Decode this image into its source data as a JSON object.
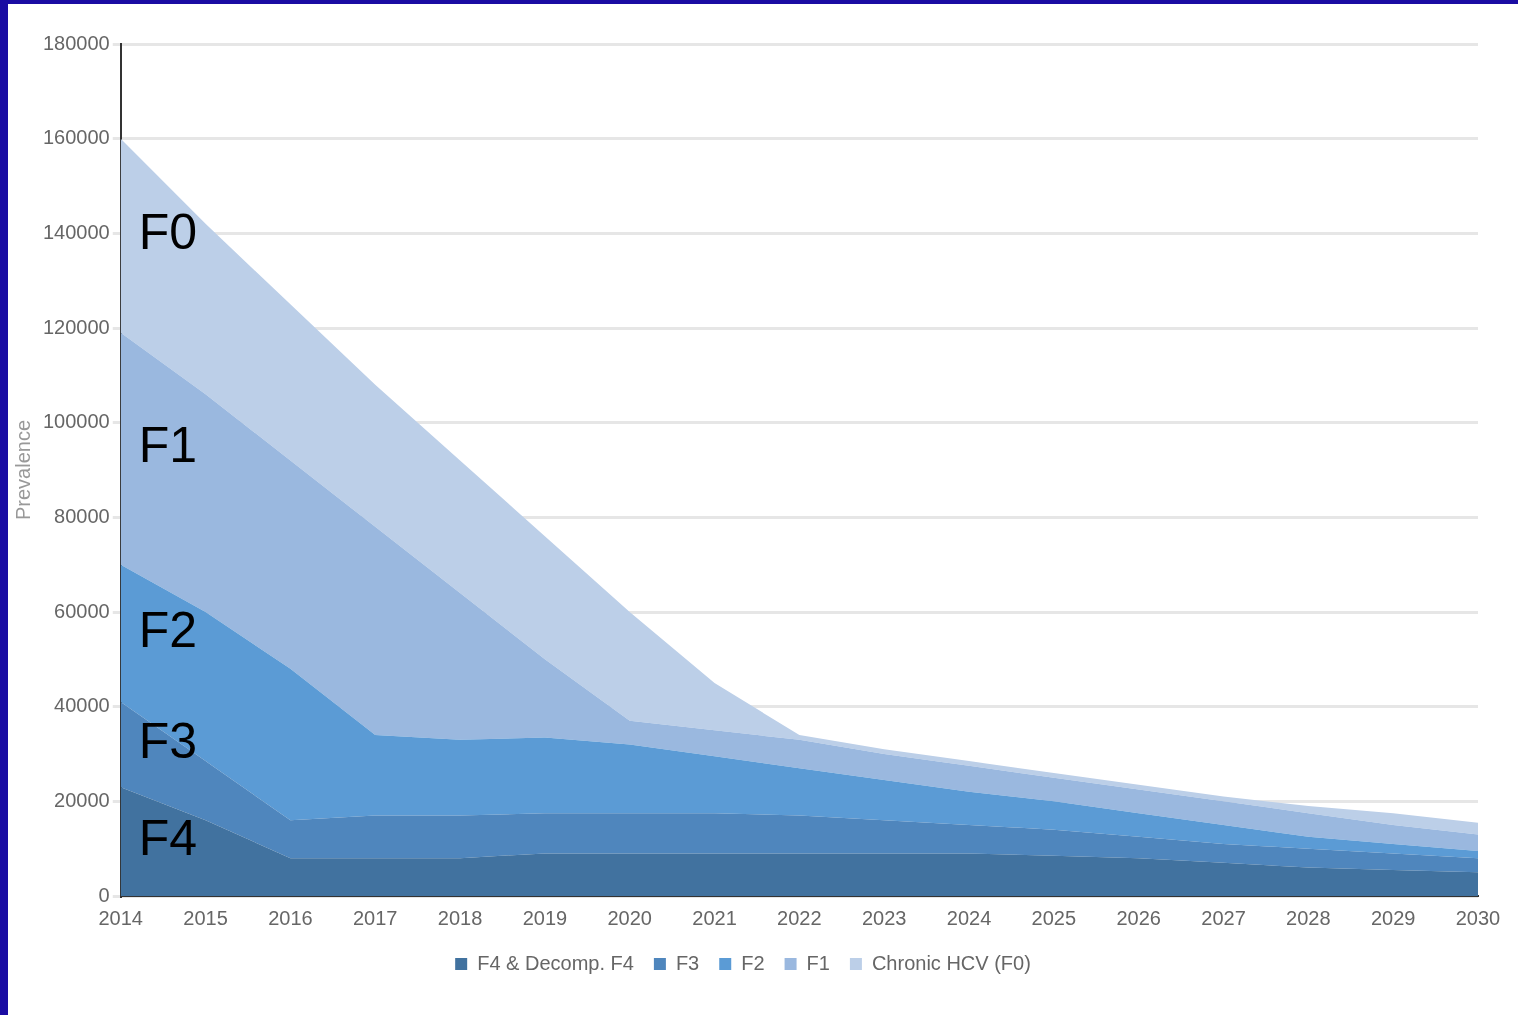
{
  "chart_data": {
    "type": "area",
    "stacked": true,
    "ylabel": "Prevalence",
    "x": [
      2014,
      2015,
      2016,
      2017,
      2018,
      2019,
      2020,
      2021,
      2022,
      2023,
      2024,
      2025,
      2026,
      2027,
      2028,
      2029,
      2030
    ],
    "xlim": [
      2014,
      2030
    ],
    "xticks": [
      2014,
      2015,
      2016,
      2017,
      2018,
      2019,
      2020,
      2021,
      2022,
      2023,
      2024,
      2025,
      2026,
      2027,
      2028,
      2029,
      2030
    ],
    "ylim": [
      0,
      180000
    ],
    "yticks": [
      0,
      20000,
      40000,
      60000,
      80000,
      100000,
      120000,
      140000,
      160000,
      180000
    ],
    "grid": "y",
    "legend": "bottom",
    "series": [
      {
        "name": "F4 & Decomp. F4",
        "color": "#41729f",
        "values": [
          23000,
          16000,
          8000,
          8000,
          8000,
          9000,
          9000,
          9000,
          9000,
          9000,
          9000,
          8500,
          8000,
          7000,
          6000,
          5500,
          5000
        ]
      },
      {
        "name": "F3",
        "color": "#4f86bd",
        "values": [
          18000,
          12500,
          8000,
          9000,
          9000,
          8500,
          8500,
          8500,
          8000,
          7000,
          6000,
          5500,
          4500,
          4000,
          4000,
          3500,
          3000
        ]
      },
      {
        "name": "F2",
        "color": "#5b9bd5",
        "values": [
          29000,
          31500,
          32000,
          17000,
          16000,
          16000,
          14500,
          12000,
          10000,
          8500,
          7000,
          6000,
          5000,
          4000,
          2500,
          2000,
          1500
        ]
      },
      {
        "name": "F1",
        "color": "#9ab8df",
        "values": [
          49000,
          46000,
          44000,
          44000,
          31000,
          16500,
          5000,
          5500,
          6000,
          5500,
          5500,
          5000,
          5000,
          5000,
          5000,
          4000,
          3500
        ]
      },
      {
        "name": "Chronic HCV (F0)",
        "color": "#bccfe8",
        "values": [
          41000,
          36000,
          33000,
          30000,
          28000,
          26000,
          23000,
          10000,
          1000,
          1000,
          1000,
          1000,
          1000,
          1000,
          1500,
          2500,
          2500
        ]
      }
    ],
    "annotations": [
      "F0",
      "F1",
      "F2",
      "F3",
      "F4"
    ]
  }
}
